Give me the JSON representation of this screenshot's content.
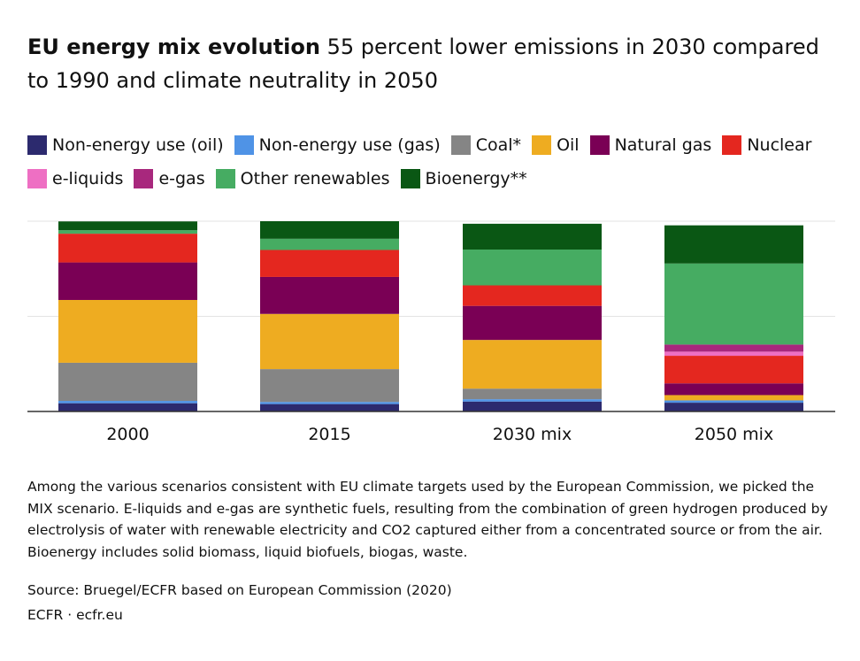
{
  "title": {
    "bold": "EU energy mix evolution",
    "rest": "55 percent lower emissions in 2030 compared to 1990 and climate neutrality in 2050"
  },
  "notes": "Among the various scenarios consistent with EU climate targets used by the European Commission, we picked the MIX scenario. E-liquids and e-gas are synthetic fuels, resulting from the combination of green hydrogen produced by electrolysis of water with renewable electricity and CO2 captured either from a concentrated source or from the air. Bioenergy includes solid biomass, liquid biofuels, biogas, waste.",
  "source": "Source: Bruegel/ECFR based on European Commission (2020)",
  "credit": "ECFR · ecfr.eu",
  "chart_data": {
    "type": "bar",
    "stacked": true,
    "categories": [
      "2000",
      "2015",
      "2030 mix",
      "2050 mix"
    ],
    "ylim": [
      0,
      1800
    ],
    "grid": true,
    "legend_position": "top",
    "series": [
      {
        "name": "Non-energy use (oil)",
        "color": "#2c2a6e",
        "values": [
          78,
          70,
          94,
          83
        ]
      },
      {
        "name": "Non-energy use (gas)",
        "color": "#4f93e6",
        "values": [
          22,
          20,
          22,
          22
        ]
      },
      {
        "name": "Coal*",
        "color": "#858585",
        "values": [
          361,
          311,
          100,
          0
        ]
      },
      {
        "name": "Oil",
        "color": "#eeac21",
        "values": [
          594,
          522,
          461,
          50
        ]
      },
      {
        "name": "Natural gas",
        "color": "#7a0055",
        "values": [
          355,
          350,
          322,
          111
        ]
      },
      {
        "name": "Nuclear",
        "color": "#e4271f",
        "values": [
          272,
          255,
          194,
          261
        ]
      },
      {
        "name": "e-liquids",
        "color": "#ee6fc3",
        "values": [
          0,
          0,
          0,
          39
        ]
      },
      {
        "name": "e-gas",
        "color": "#a8287d",
        "values": [
          0,
          0,
          0,
          67
        ]
      },
      {
        "name": "Other renewables",
        "color": "#46ac62",
        "values": [
          33,
          106,
          339,
          767
        ]
      },
      {
        "name": "Bioenergy**",
        "color": "#0a5714",
        "values": [
          83,
          166,
          244,
          361
        ]
      }
    ]
  }
}
